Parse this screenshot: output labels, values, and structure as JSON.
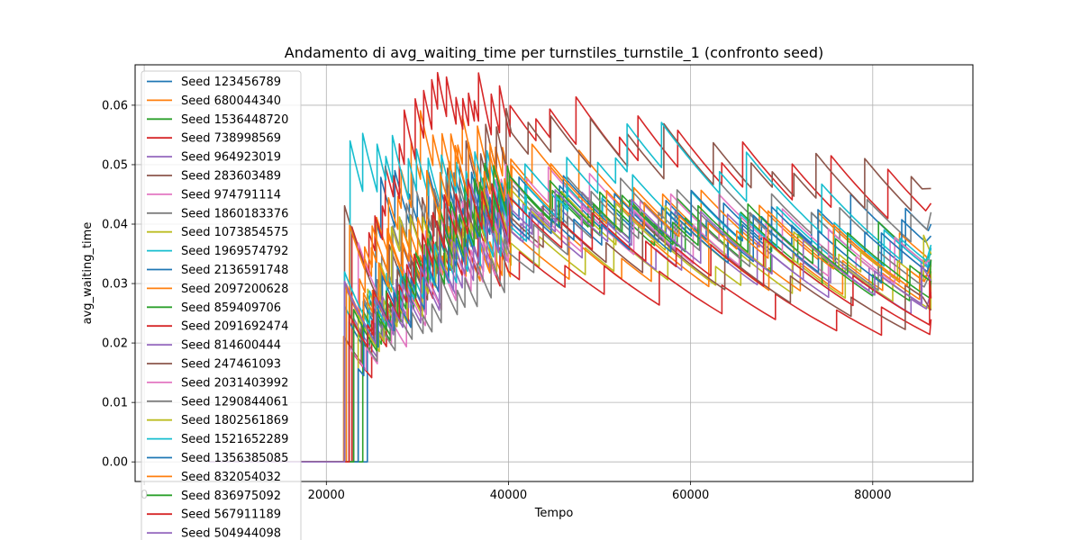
{
  "chart_data": {
    "type": "line",
    "title": "Andamento di avg_waiting_time per turnstiles_turnstile_1 (confronto seed)",
    "xlabel": "Tempo",
    "ylabel": "avg_waiting_time",
    "xlim": [
      -1000,
      91000
    ],
    "ylim": [
      -0.0033,
      0.0668
    ],
    "x_ticks": [
      0,
      20000,
      40000,
      60000,
      80000
    ],
    "x_tick_labels": [
      "0",
      "20000",
      "40000",
      "60000",
      "80000"
    ],
    "y_ticks": [
      0.0,
      0.01,
      0.02,
      0.03,
      0.04,
      0.05,
      0.06
    ],
    "y_tick_labels": [
      "0.00",
      "0.01",
      "0.02",
      "0.03",
      "0.04",
      "0.05",
      "0.06"
    ],
    "grid": true,
    "legend_position": "top-left",
    "series": [
      {
        "name": "Seed 123456789",
        "color": "#1f77b4",
        "start": 24500,
        "peak": [
          26000,
          0.046
        ],
        "end": 0.04
      },
      {
        "name": "Seed 680044340",
        "color": "#ff7f0e",
        "start": 22000,
        "peak": [
          30500,
          0.056
        ],
        "end": 0.033
      },
      {
        "name": "Seed 1536448720",
        "color": "#2ca02c",
        "start": 23500,
        "peak": [
          38000,
          0.046
        ],
        "end": 0.035
      },
      {
        "name": "Seed 738998569",
        "color": "#d62728",
        "start": 22800,
        "peak": [
          30500,
          0.064
        ],
        "end": 0.0435
      },
      {
        "name": "Seed 964923019",
        "color": "#9467bd",
        "start": 23000,
        "peak": [
          44000,
          0.045
        ],
        "end": 0.031
      },
      {
        "name": "Seed 283603489",
        "color": "#8c564b",
        "start": 22000,
        "peak": [
          39500,
          0.0575
        ],
        "end": 0.046
      },
      {
        "name": "Seed 974791114",
        "color": "#e377c2",
        "start": 23500,
        "peak": [
          40000,
          0.05
        ],
        "end": 0.033
      },
      {
        "name": "Seed 1860183376",
        "color": "#7f7f7f",
        "start": 22500,
        "peak": [
          29000,
          0.045
        ],
        "end": 0.042
      },
      {
        "name": "Seed 1073854575",
        "color": "#bcbd22",
        "start": 22500,
        "peak": [
          28000,
          0.04
        ],
        "end": 0.0305
      },
      {
        "name": "Seed 1969574792",
        "color": "#17becf",
        "start": 22000,
        "peak": [
          22500,
          0.0525
        ],
        "end": 0.036
      },
      {
        "name": "Seed 2136591748",
        "color": "#1f77b4",
        "start": 22500,
        "peak": [
          36000,
          0.046
        ],
        "end": 0.038
      },
      {
        "name": "Seed 2097200628",
        "color": "#ff7f0e",
        "start": 21900,
        "peak": [
          22000,
          0.037
        ],
        "end": 0.0325
      },
      {
        "name": "Seed 859409706",
        "color": "#2ca02c",
        "start": 24000,
        "peak": [
          36500,
          0.047
        ],
        "end": 0.0305
      },
      {
        "name": "Seed 2091692474",
        "color": "#d62728",
        "start": 23000,
        "peak": [
          33000,
          0.037
        ],
        "end": 0.024
      },
      {
        "name": "Seed 814600444",
        "color": "#9467bd",
        "start": 22000,
        "peak": [
          36000,
          0.043
        ],
        "end": 0.0285
      },
      {
        "name": "Seed 247461093",
        "color": "#8c564b",
        "start": 22000,
        "peak": [
          36000,
          0.043
        ],
        "end": 0.0255
      },
      {
        "name": "Seed 2031403992",
        "color": "#e377c2",
        "start": 22500,
        "peak": [
          42000,
          0.041
        ],
        "end": 0.034
      },
      {
        "name": "Seed 1290844061",
        "color": "#7f7f7f",
        "start": 23000,
        "peak": [
          50000,
          0.043
        ],
        "end": 0.032
      },
      {
        "name": "Seed 1802561869",
        "color": "#bcbd22",
        "start": 23500,
        "peak": [
          37000,
          0.043
        ],
        "end": 0.035
      },
      {
        "name": "Seed 1521652289",
        "color": "#17becf",
        "start": 22000,
        "peak": [
          55000,
          0.055
        ],
        "end": 0.0365
      },
      {
        "name": "Seed 1356385085",
        "color": "#1f77b4",
        "start": 23500,
        "peak": [
          38000,
          0.044
        ],
        "end": 0.034
      },
      {
        "name": "Seed 832054032",
        "color": "#ff7f0e",
        "start": 22200,
        "peak": [
          33500,
          0.051
        ],
        "end": 0.033
      },
      {
        "name": "Seed 836975092",
        "color": "#2ca02c",
        "start": 23000,
        "peak": [
          39000,
          0.047
        ],
        "end": 0.034
      },
      {
        "name": "Seed 567911189",
        "color": "#d62728",
        "start": 22500,
        "peak": [
          35000,
          0.045
        ],
        "end": 0.0275
      },
      {
        "name": "Seed 504944098",
        "color": "#9467bd",
        "start": 22000,
        "peak": [
          42000,
          0.044
        ],
        "end": 0.0305
      }
    ]
  }
}
